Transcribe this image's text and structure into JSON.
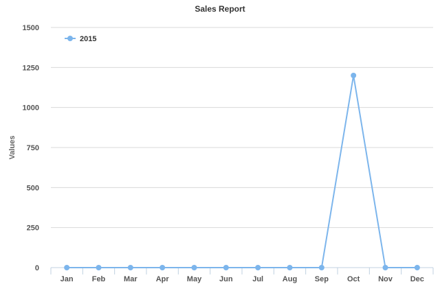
{
  "chart_data": {
    "type": "line",
    "title": "Sales Report",
    "xlabel": "",
    "ylabel": "Values",
    "categories": [
      "Jan",
      "Feb",
      "Mar",
      "Apr",
      "May",
      "Jun",
      "Jul",
      "Aug",
      "Sep",
      "Oct",
      "Nov",
      "Dec"
    ],
    "ylim": [
      0,
      1500
    ],
    "yticks": [
      0,
      250,
      500,
      750,
      1000,
      1250,
      1500
    ],
    "grid": true,
    "legend": "top-left",
    "series": [
      {
        "name": "2015",
        "color": "#7cb5ec",
        "values": [
          0,
          0,
          0,
          0,
          0,
          0,
          0,
          0,
          0,
          1200,
          0,
          0
        ]
      }
    ]
  }
}
